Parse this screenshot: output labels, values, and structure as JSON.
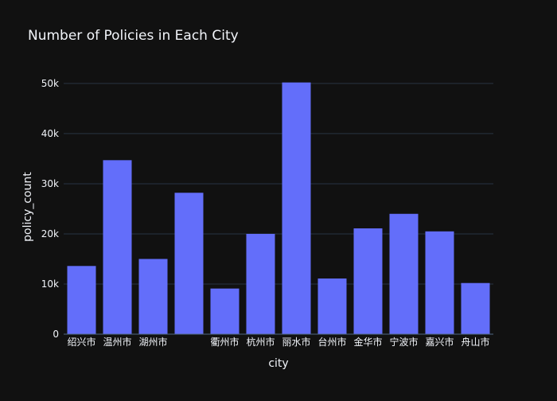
{
  "chart_data": {
    "type": "bar",
    "title": "Number of Policies in Each City",
    "xlabel": "city",
    "ylabel": "policy_count",
    "categories": [
      "绍兴市",
      "温州市",
      "湖州市",
      "",
      "衢州市",
      "杭州市",
      "丽水市",
      "台州市",
      "金华市",
      "宁波市",
      "嘉兴市",
      "舟山市"
    ],
    "values": [
      13600,
      34700,
      15000,
      28200,
      9100,
      20000,
      50200,
      11100,
      21100,
      24000,
      20500,
      10200
    ],
    "ylim": [
      0,
      53000
    ],
    "yticks": [
      0,
      10000,
      20000,
      30000,
      40000,
      50000
    ],
    "ytick_labels": [
      "0",
      "10k",
      "20k",
      "30k",
      "40k",
      "50k"
    ],
    "grid": true,
    "colors": {
      "bar": "#636efa",
      "background": "#111111",
      "grid": "#283442",
      "text": "#f2f5fa"
    }
  }
}
